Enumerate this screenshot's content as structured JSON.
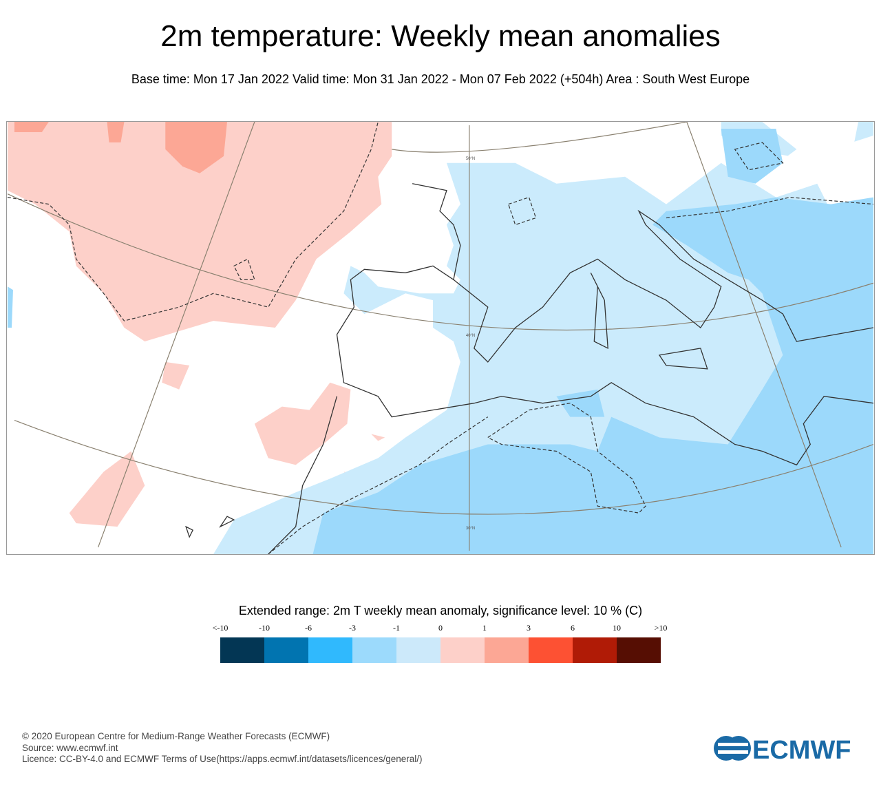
{
  "title": "2m temperature: Weekly mean anomalies",
  "subtitle": "Base time: Mon 17 Jan 2022 Valid time: Mon 31 Jan 2022 - Mon 07 Feb 2022 (+504h) Area : South West Europe",
  "map": {
    "lat_labels": [
      "50°N",
      "40°N",
      "30°N"
    ],
    "colors": {
      "positive_weak": "#fdd0c9",
      "negative_weak": "#cbebfc",
      "negative_moderate": "#9cd9fb",
      "coast": "#333333",
      "grid": "#8a8170"
    }
  },
  "legend": {
    "title": "Extended range: 2m T weekly mean anomaly, significance level: 10 % (C)",
    "ticks": [
      "<-10",
      "-10",
      "-6",
      "-3",
      "-1",
      "0",
      "1",
      "3",
      "6",
      "10",
      ">10"
    ],
    "colors": [
      "#033654",
      "#0174b0",
      "#30b9fd",
      "#9cdafc",
      "#cce9fa",
      "#fdd0c9",
      "#fca795",
      "#fd5133",
      "#b01b06",
      "#560e03"
    ]
  },
  "footer": {
    "copyright": "© 2020 European Centre for Medium-Range Weather Forecasts (ECMWF)",
    "source": "Source: www.ecmwf.int",
    "licence": "Licence: CC-BY-4.0 and ECMWF Terms of Use(https://apps.ecmwf.int/datasets/licences/general/)"
  },
  "logo_text": "ECMWF"
}
